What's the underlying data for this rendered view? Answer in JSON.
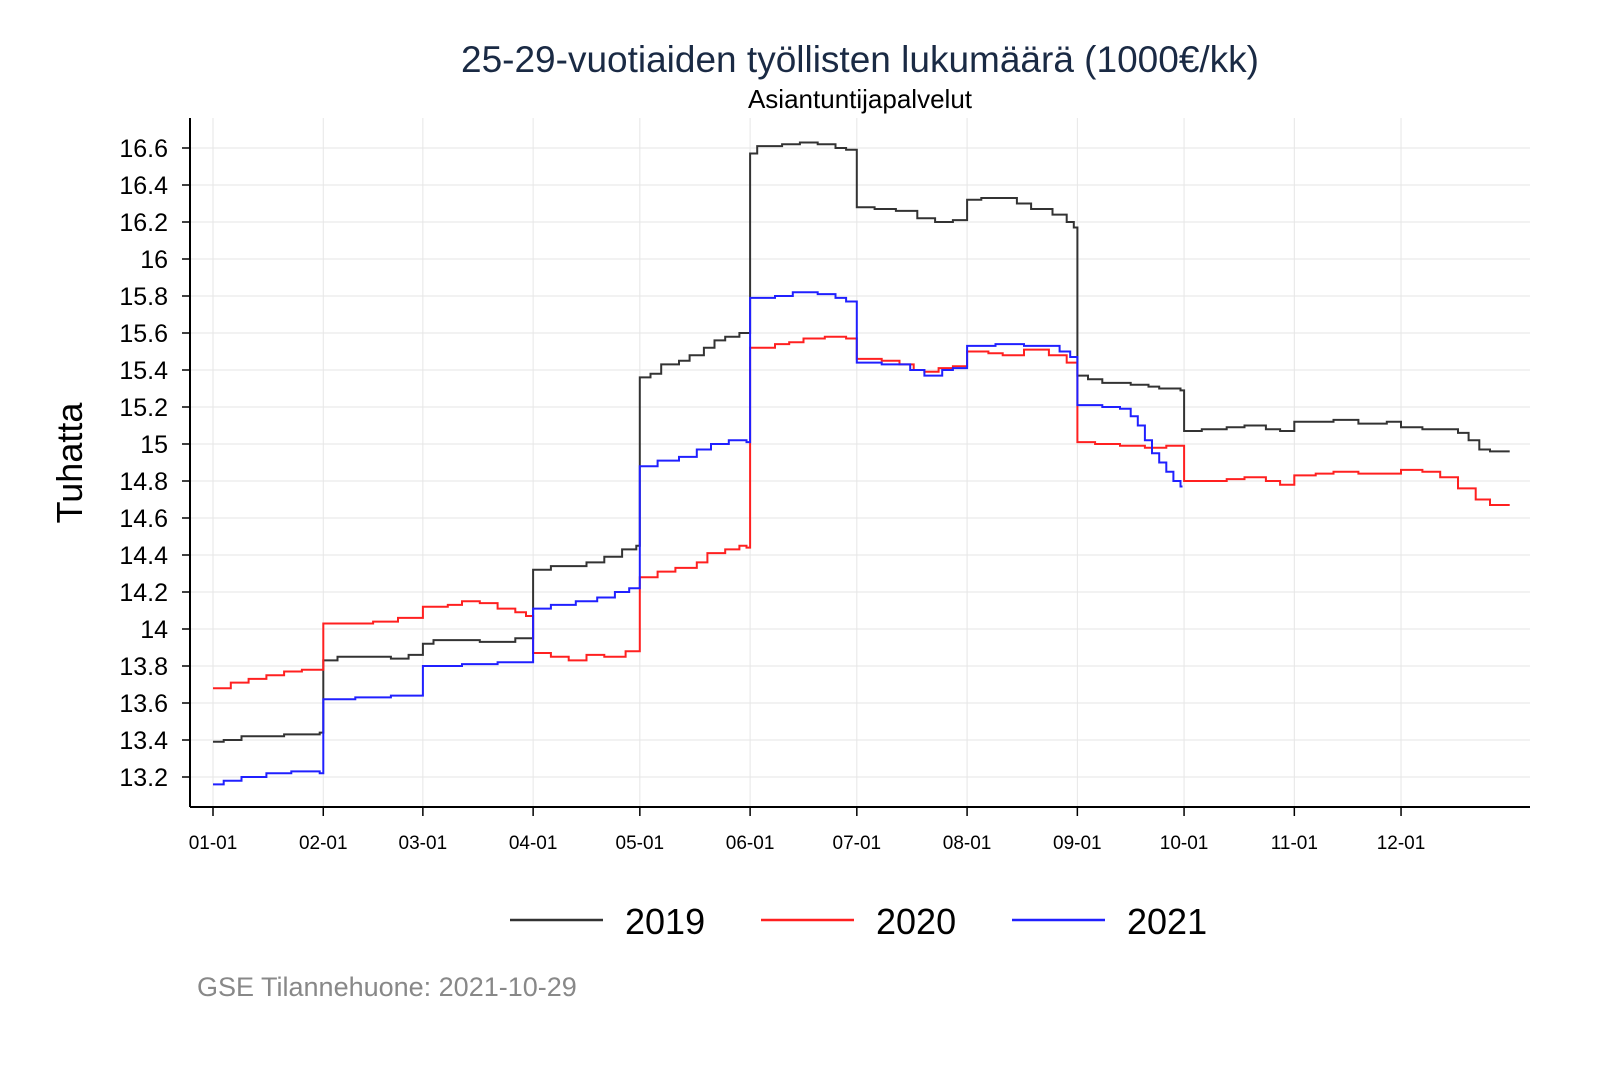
{
  "chart_data": {
    "type": "line",
    "title": "25-29-vuotiaiden työllisten lukumäärä (1000€/kk)",
    "subtitle": "Asiantuntijapalvelut",
    "ylabel": "Tuhatta",
    "xlabel": "",
    "caption": "GSE Tilannehuone: 2021-10-29",
    "ylim": [
      13.05,
      16.75
    ],
    "xlim_days": [
      -6,
      371
    ],
    "grid": true,
    "legend_position": "bottom",
    "yticks": [
      "13.2",
      "13.4",
      "13.6",
      "13.8",
      "14",
      "14.2",
      "14.4",
      "14.6",
      "14.8",
      "15",
      "15.2",
      "15.4",
      "15.6",
      "15.8",
      "16",
      "16.2",
      "16.4",
      "16.6"
    ],
    "xticks": [
      {
        "label": "01-01",
        "day": 0
      },
      {
        "label": "02-01",
        "day": 31
      },
      {
        "label": "03-01",
        "day": 59
      },
      {
        "label": "04-01",
        "day": 90
      },
      {
        "label": "05-01",
        "day": 120
      },
      {
        "label": "06-01",
        "day": 151
      },
      {
        "label": "07-01",
        "day": 181
      },
      {
        "label": "08-01",
        "day": 212
      },
      {
        "label": "09-01",
        "day": 243
      },
      {
        "label": "10-01",
        "day": 273
      },
      {
        "label": "11-01",
        "day": 304
      },
      {
        "label": "12-01",
        "day": 334
      }
    ],
    "series": [
      {
        "name": "2019",
        "color": "#333333",
        "points": [
          [
            0,
            13.39
          ],
          [
            3,
            13.4
          ],
          [
            8,
            13.42
          ],
          [
            20,
            13.43
          ],
          [
            30,
            13.44
          ],
          [
            31,
            13.83
          ],
          [
            35,
            13.85
          ],
          [
            50,
            13.84
          ],
          [
            55,
            13.86
          ],
          [
            59,
            13.92
          ],
          [
            62,
            13.94
          ],
          [
            75,
            13.93
          ],
          [
            85,
            13.95
          ],
          [
            90,
            14.32
          ],
          [
            95,
            14.34
          ],
          [
            105,
            14.36
          ],
          [
            110,
            14.39
          ],
          [
            115,
            14.43
          ],
          [
            119,
            14.45
          ],
          [
            120,
            15.36
          ],
          [
            123,
            15.38
          ],
          [
            126,
            15.43
          ],
          [
            131,
            15.45
          ],
          [
            134,
            15.48
          ],
          [
            138,
            15.52
          ],
          [
            141,
            15.56
          ],
          [
            144,
            15.58
          ],
          [
            148,
            15.6
          ],
          [
            151,
            16.57
          ],
          [
            153,
            16.61
          ],
          [
            160,
            16.62
          ],
          [
            165,
            16.63
          ],
          [
            170,
            16.62
          ],
          [
            175,
            16.6
          ],
          [
            178,
            16.59
          ],
          [
            181,
            16.28
          ],
          [
            186,
            16.27
          ],
          [
            192,
            16.26
          ],
          [
            198,
            16.22
          ],
          [
            203,
            16.2
          ],
          [
            208,
            16.21
          ],
          [
            212,
            16.32
          ],
          [
            216,
            16.33
          ],
          [
            222,
            16.33
          ],
          [
            226,
            16.3
          ],
          [
            230,
            16.27
          ],
          [
            236,
            16.24
          ],
          [
            240,
            16.2
          ],
          [
            242,
            16.17
          ],
          [
            243,
            15.37
          ],
          [
            246,
            15.35
          ],
          [
            250,
            15.33
          ],
          [
            258,
            15.32
          ],
          [
            263,
            15.31
          ],
          [
            266,
            15.3
          ],
          [
            272,
            15.29
          ],
          [
            273,
            15.07
          ],
          [
            278,
            15.08
          ],
          [
            285,
            15.09
          ],
          [
            290,
            15.1
          ],
          [
            296,
            15.08
          ],
          [
            300,
            15.07
          ],
          [
            304,
            15.12
          ],
          [
            315,
            15.13
          ],
          [
            322,
            15.11
          ],
          [
            330,
            15.12
          ],
          [
            334,
            15.09
          ],
          [
            340,
            15.08
          ],
          [
            350,
            15.06
          ],
          [
            353,
            15.02
          ],
          [
            356,
            14.97
          ],
          [
            359,
            14.96
          ],
          [
            364,
            14.96
          ]
        ]
      },
      {
        "name": "2020",
        "color": "#ff2020",
        "points": [
          [
            0,
            13.68
          ],
          [
            5,
            13.71
          ],
          [
            10,
            13.73
          ],
          [
            15,
            13.75
          ],
          [
            20,
            13.77
          ],
          [
            25,
            13.78
          ],
          [
            31,
            14.03
          ],
          [
            45,
            14.04
          ],
          [
            52,
            14.06
          ],
          [
            59,
            14.12
          ],
          [
            66,
            14.13
          ],
          [
            70,
            14.15
          ],
          [
            75,
            14.14
          ],
          [
            80,
            14.11
          ],
          [
            85,
            14.09
          ],
          [
            88,
            14.07
          ],
          [
            90,
            13.87
          ],
          [
            95,
            13.85
          ],
          [
            100,
            13.83
          ],
          [
            105,
            13.86
          ],
          [
            110,
            13.85
          ],
          [
            116,
            13.88
          ],
          [
            120,
            14.28
          ],
          [
            125,
            14.31
          ],
          [
            130,
            14.33
          ],
          [
            136,
            14.36
          ],
          [
            139,
            14.41
          ],
          [
            144,
            14.43
          ],
          [
            148,
            14.45
          ],
          [
            150,
            14.44
          ],
          [
            151,
            15.52
          ],
          [
            158,
            15.54
          ],
          [
            162,
            15.55
          ],
          [
            166,
            15.57
          ],
          [
            172,
            15.58
          ],
          [
            178,
            15.57
          ],
          [
            181,
            15.46
          ],
          [
            188,
            15.45
          ],
          [
            193,
            15.43
          ],
          [
            197,
            15.4
          ],
          [
            200,
            15.39
          ],
          [
            204,
            15.41
          ],
          [
            208,
            15.42
          ],
          [
            212,
            15.5
          ],
          [
            218,
            15.49
          ],
          [
            222,
            15.48
          ],
          [
            228,
            15.51
          ],
          [
            235,
            15.48
          ],
          [
            240,
            15.44
          ],
          [
            243,
            15.01
          ],
          [
            248,
            15.0
          ],
          [
            255,
            14.99
          ],
          [
            262,
            14.98
          ],
          [
            268,
            14.99
          ],
          [
            273,
            14.8
          ],
          [
            280,
            14.8
          ],
          [
            285,
            14.81
          ],
          [
            290,
            14.82
          ],
          [
            296,
            14.8
          ],
          [
            300,
            14.78
          ],
          [
            304,
            14.83
          ],
          [
            310,
            14.84
          ],
          [
            315,
            14.85
          ],
          [
            322,
            14.84
          ],
          [
            328,
            14.84
          ],
          [
            334,
            14.86
          ],
          [
            340,
            14.85
          ],
          [
            345,
            14.82
          ],
          [
            350,
            14.76
          ],
          [
            355,
            14.7
          ],
          [
            359,
            14.67
          ],
          [
            364,
            14.67
          ]
        ]
      },
      {
        "name": "2021",
        "color": "#2020ff",
        "points": [
          [
            0,
            13.16
          ],
          [
            3,
            13.18
          ],
          [
            8,
            13.2
          ],
          [
            15,
            13.22
          ],
          [
            22,
            13.23
          ],
          [
            30,
            13.22
          ],
          [
            31,
            13.62
          ],
          [
            40,
            13.63
          ],
          [
            50,
            13.64
          ],
          [
            59,
            13.8
          ],
          [
            70,
            13.81
          ],
          [
            80,
            13.82
          ],
          [
            88,
            13.82
          ],
          [
            90,
            14.11
          ],
          [
            95,
            14.13
          ],
          [
            102,
            14.15
          ],
          [
            108,
            14.17
          ],
          [
            113,
            14.2
          ],
          [
            117,
            14.22
          ],
          [
            120,
            14.88
          ],
          [
            125,
            14.91
          ],
          [
            131,
            14.93
          ],
          [
            136,
            14.97
          ],
          [
            140,
            15.0
          ],
          [
            145,
            15.02
          ],
          [
            150,
            15.01
          ],
          [
            151,
            15.79
          ],
          [
            158,
            15.8
          ],
          [
            163,
            15.82
          ],
          [
            170,
            15.81
          ],
          [
            175,
            15.79
          ],
          [
            178,
            15.77
          ],
          [
            181,
            15.44
          ],
          [
            188,
            15.43
          ],
          [
            196,
            15.4
          ],
          [
            200,
            15.37
          ],
          [
            205,
            15.4
          ],
          [
            208,
            15.41
          ],
          [
            212,
            15.53
          ],
          [
            220,
            15.54
          ],
          [
            228,
            15.53
          ],
          [
            235,
            15.53
          ],
          [
            238,
            15.5
          ],
          [
            241,
            15.47
          ],
          [
            243,
            15.21
          ],
          [
            250,
            15.2
          ],
          [
            255,
            15.19
          ],
          [
            258,
            15.15
          ],
          [
            260,
            15.1
          ],
          [
            262,
            15.02
          ],
          [
            264,
            14.95
          ],
          [
            266,
            14.9
          ],
          [
            268,
            14.85
          ],
          [
            270,
            14.8
          ],
          [
            272,
            14.77
          ]
        ]
      }
    ]
  }
}
